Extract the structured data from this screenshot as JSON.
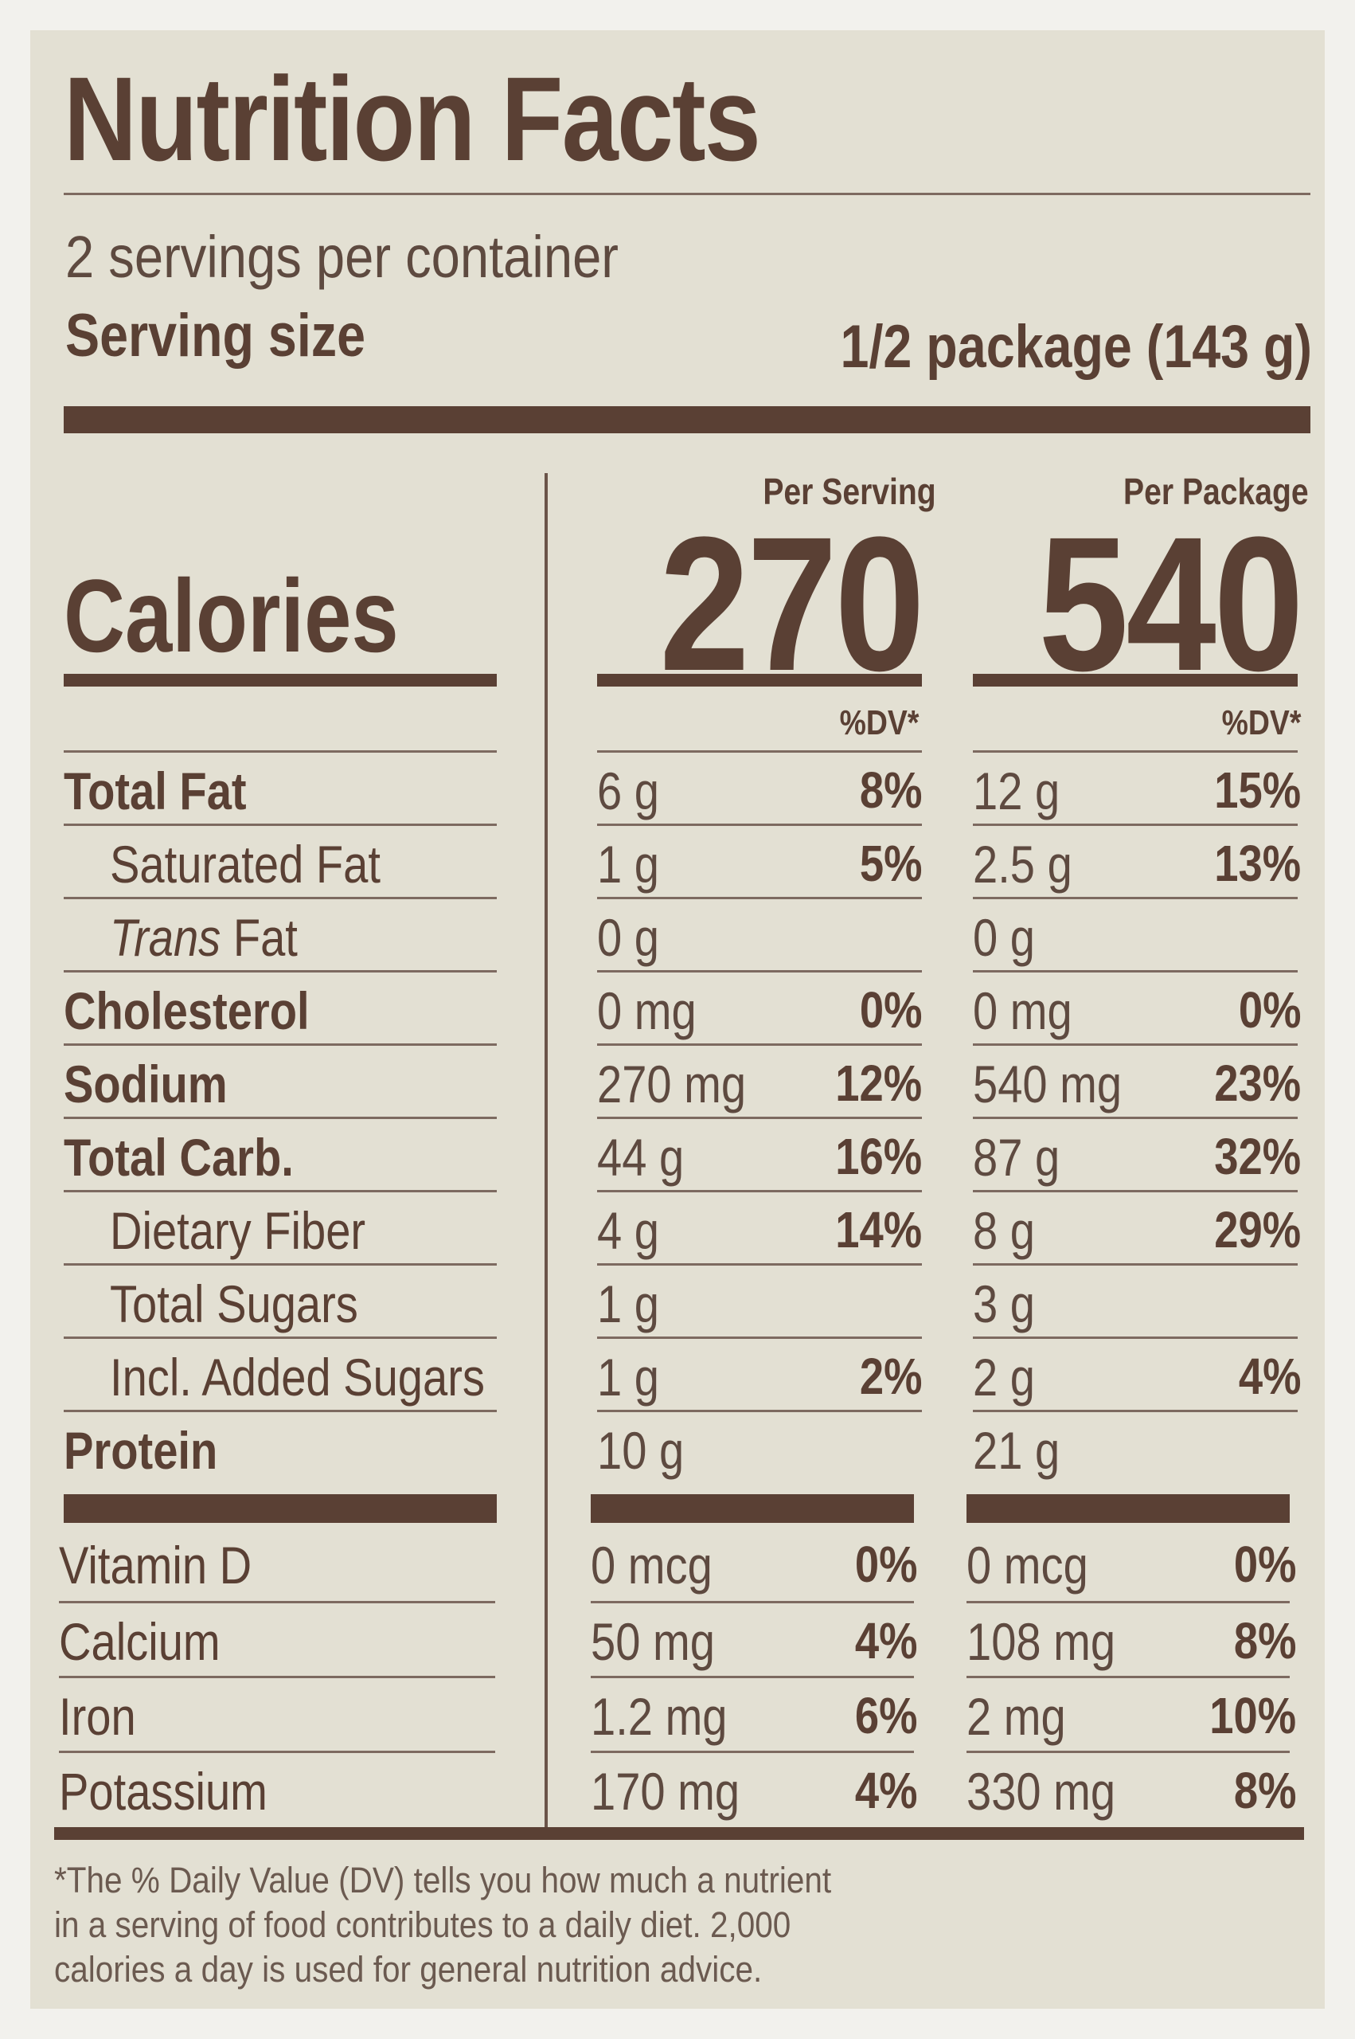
{
  "title": "Nutrition Facts",
  "servings_per_container": "2 servings per container",
  "serving_size_label": "Serving size",
  "serving_size_value": "1/2 package (143 g)",
  "col_per_serving": "Per Serving",
  "col_per_package": "Per Package",
  "calories_label": "Calories",
  "calories_per_serving": "270",
  "calories_per_package": "540",
  "dv_header": "%DV*",
  "nutrients": [
    {
      "name": "Total Fat",
      "amt1": "6 g",
      "dv1": "8%",
      "amt2": "12 g",
      "dv2": "15%"
    },
    {
      "name": "Saturated Fat",
      "amt1": "1 g",
      "dv1": "5%",
      "amt2": "2.5 g",
      "dv2": "13%"
    },
    {
      "name_italic": "Trans",
      "name": " Fat",
      "amt1": "0 g",
      "dv1": "",
      "amt2": "0 g",
      "dv2": ""
    },
    {
      "name": "Cholesterol",
      "amt1": "0 mg",
      "dv1": "0%",
      "amt2": "0 mg",
      "dv2": "0%"
    },
    {
      "name": "Sodium",
      "amt1": "270 mg",
      "dv1": "12%",
      "amt2": "540 mg",
      "dv2": "23%"
    },
    {
      "name": "Total Carb.",
      "amt1": "44 g",
      "dv1": "16%",
      "amt2": "87 g",
      "dv2": "32%"
    },
    {
      "name": "Dietary Fiber",
      "amt1": "4 g",
      "dv1": "14%",
      "amt2": "8 g",
      "dv2": "29%"
    },
    {
      "name": "Total Sugars",
      "amt1": "1 g",
      "dv1": "",
      "amt2": "3 g",
      "dv2": ""
    },
    {
      "name": "Incl. Added Sugars",
      "amt1": "1 g",
      "dv1": "2%",
      "amt2": "2 g",
      "dv2": "4%"
    },
    {
      "name": "Protein",
      "amt1": "10 g",
      "dv1": "",
      "amt2": "21 g",
      "dv2": ""
    }
  ],
  "vitamins": [
    {
      "name": "Vitamin D",
      "amt1": "0 mcg",
      "dv1": "0%",
      "amt2": "0 mcg",
      "dv2": "0%"
    },
    {
      "name": "Calcium",
      "amt1": "50 mg",
      "dv1": "4%",
      "amt2": "108 mg",
      "dv2": "8%"
    },
    {
      "name": "Iron",
      "amt1": "1.2 mg",
      "dv1": "6%",
      "amt2": "2 mg",
      "dv2": "10%"
    },
    {
      "name": "Potassium",
      "amt1": "170 mg",
      "dv1": "4%",
      "amt2": "330 mg",
      "dv2": "8%"
    }
  ],
  "footnote": [
    "*The % Daily Value (DV) tells you how much a nutrient",
    "in a serving of food contributes to a daily diet. 2,000",
    "calories a day is used for general nutrition advice."
  ]
}
